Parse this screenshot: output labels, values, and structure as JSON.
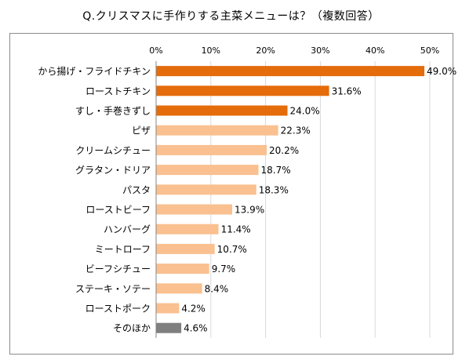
{
  "chart_data": {
    "type": "bar",
    "orientation": "horizontal",
    "title": "Q.クリスマスに手作りする主菜メニューは？（複数回答）",
    "xlabel": "",
    "ylabel": "",
    "xlim": [
      0,
      50
    ],
    "x_ticks": [
      "0%",
      "10%",
      "20%",
      "30%",
      "40%",
      "50%"
    ],
    "grid": true,
    "categories": [
      "から揚げ・フライドチキン",
      "ローストチキン",
      "すし・手巻きずし",
      "ピザ",
      "クリームシチュー",
      "グラタン・ドリア",
      "パスタ",
      "ローストビーフ",
      "ハンバーグ",
      "ミートローフ",
      "ビーフシチュー",
      "ステーキ・ソテー",
      "ローストポーク",
      "そのほか"
    ],
    "values": [
      49.0,
      31.6,
      24.0,
      22.3,
      20.2,
      18.7,
      18.3,
      13.9,
      11.4,
      10.7,
      9.7,
      8.4,
      4.2,
      4.6
    ],
    "value_labels": [
      "49.0%",
      "31.6%",
      "24.0%",
      "22.3%",
      "20.2%",
      "18.7%",
      "18.3%",
      "13.9%",
      "11.4%",
      "10.7%",
      "9.7%",
      "8.4%",
      "4.2%",
      "4.6%"
    ],
    "bar_colors": [
      "#e46c0a",
      "#e46c0a",
      "#e46c0a",
      "#fac090",
      "#fac090",
      "#fac090",
      "#fac090",
      "#fac090",
      "#fac090",
      "#fac090",
      "#fac090",
      "#fac090",
      "#fac090",
      "#7f7f7f"
    ],
    "colors": {
      "top_three": "#e46c0a",
      "others": "#fac090",
      "other_category": "#7f7f7f",
      "gridline": "#d9d9d9",
      "axis": "#868686"
    }
  }
}
